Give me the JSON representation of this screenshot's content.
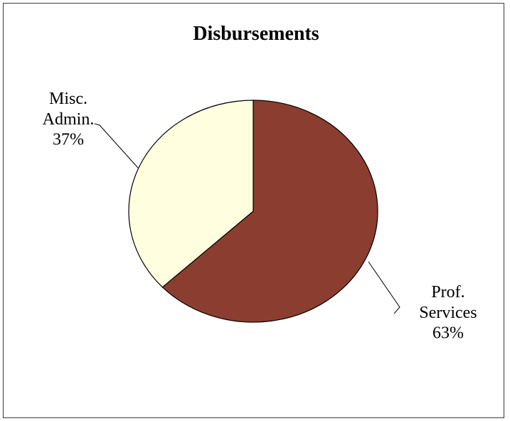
{
  "chart_data": {
    "type": "pie",
    "title": "Disbursements",
    "slices": [
      {
        "label_lines": [
          "Prof.",
          "Services",
          "63%"
        ],
        "value": 63,
        "color": "#8b3e2f"
      },
      {
        "label_lines": [
          "Misc.",
          "Admin.",
          "37%"
        ],
        "value": 37,
        "color": "#ffffe0"
      }
    ],
    "legend": "none",
    "start_angle": "12 o'clock",
    "direction": "clockwise"
  }
}
